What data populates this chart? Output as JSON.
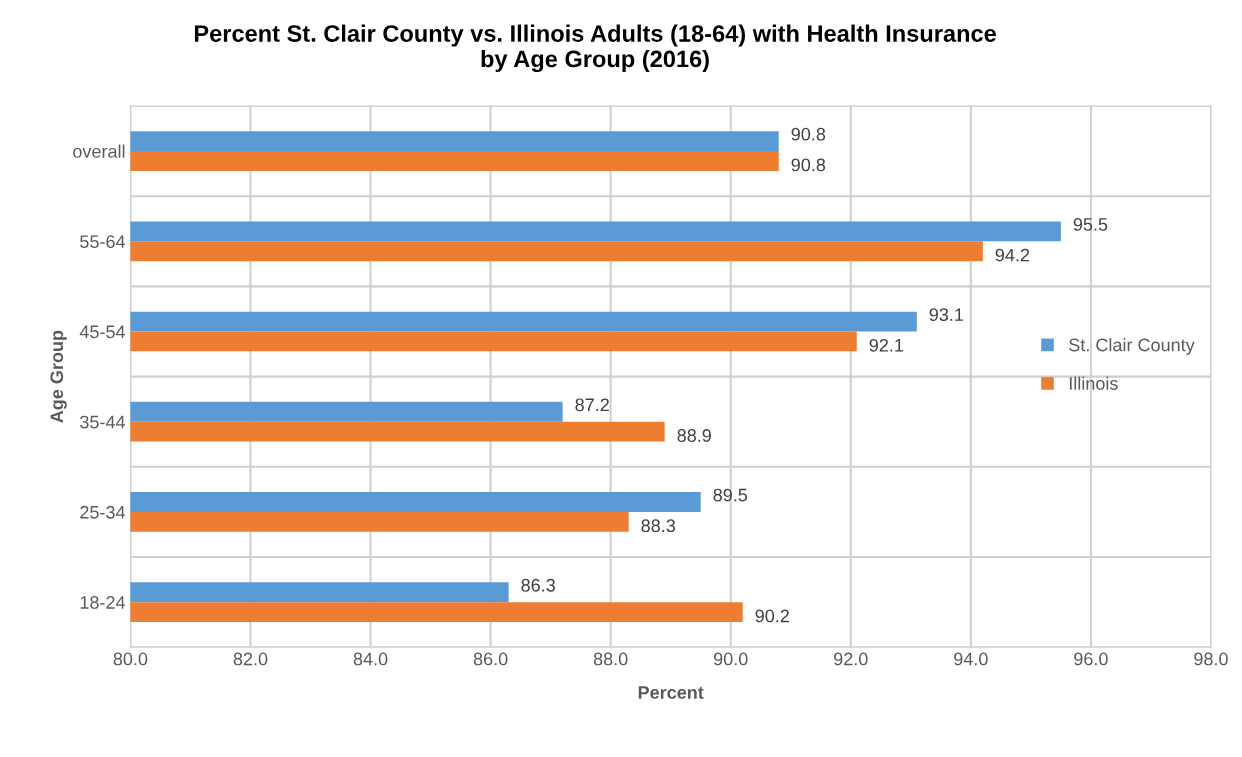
{
  "chart_data": {
    "type": "bar",
    "orientation": "horizontal",
    "title": "Percent St. Clair County vs. Illinois Adults (18-64) with Health Insurance\nby Age Group (2016)",
    "xlabel": "Percent",
    "ylabel": "Age Group",
    "categories": [
      "overall",
      "55-64",
      "45-54",
      "35-44",
      "25-34",
      "18-24"
    ],
    "series": [
      {
        "name": "St. Clair County",
        "color": "#5b9bd5",
        "values": [
          90.8,
          95.5,
          93.1,
          87.2,
          89.5,
          86.3
        ]
      },
      {
        "name": "Illinois",
        "color": "#ed7d31",
        "values": [
          90.8,
          94.2,
          92.1,
          88.9,
          88.3,
          90.2
        ]
      }
    ],
    "xlim": [
      80,
      98
    ],
    "xticks": [
      {
        "value": 80,
        "label": "80.0"
      },
      {
        "value": 82,
        "label": "82.0"
      },
      {
        "value": 84,
        "label": "84.0"
      },
      {
        "value": 86,
        "label": "86.0"
      },
      {
        "value": 88,
        "label": "88.0"
      },
      {
        "value": 90,
        "label": "90.0"
      },
      {
        "value": 92,
        "label": "92.0"
      },
      {
        "value": 94,
        "label": "94.0"
      },
      {
        "value": 96,
        "label": "96.0"
      },
      {
        "value": 98,
        "label": "98.0"
      }
    ],
    "grid": true,
    "legend": "right",
    "data_labels": true
  }
}
